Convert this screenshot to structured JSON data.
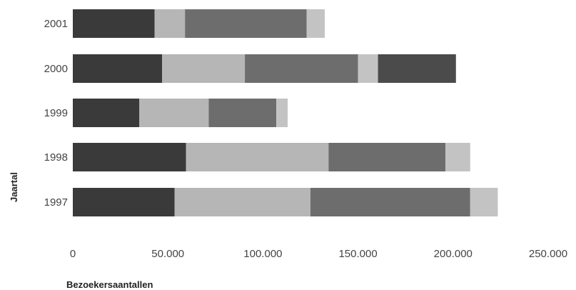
{
  "chart_data": {
    "type": "bar",
    "orientation": "horizontal",
    "stacked": true,
    "title": "",
    "xlabel": "Bezoekersaantallen",
    "ylabel": "Jaartal",
    "xlim": [
      0,
      250000
    ],
    "x_ticks": [
      0,
      50000,
      100000,
      150000,
      200000,
      250000
    ],
    "x_tick_labels": [
      "0",
      "50.000",
      "100.000",
      "150.000",
      "200.000",
      "250.000"
    ],
    "grid": false,
    "legend": "none",
    "categories": [
      "2001",
      "2000",
      "1999",
      "1998",
      "1997"
    ],
    "series": [
      {
        "color": "#3a3a3a",
        "values": [
          43000,
          47000,
          35000,
          59500,
          53500
        ]
      },
      {
        "color": "#b6b6b6",
        "values": [
          16000,
          43500,
          36500,
          75000,
          71500
        ]
      },
      {
        "color": "#6d6d6d",
        "values": [
          64000,
          59500,
          35500,
          61500,
          84000
        ]
      },
      {
        "color": "#c3c3c3",
        "values": [
          9500,
          10500,
          6000,
          13000,
          14500
        ]
      },
      {
        "color": "#4b4b4b",
        "values": [
          0,
          41000,
          0,
          0,
          0
        ]
      }
    ]
  }
}
